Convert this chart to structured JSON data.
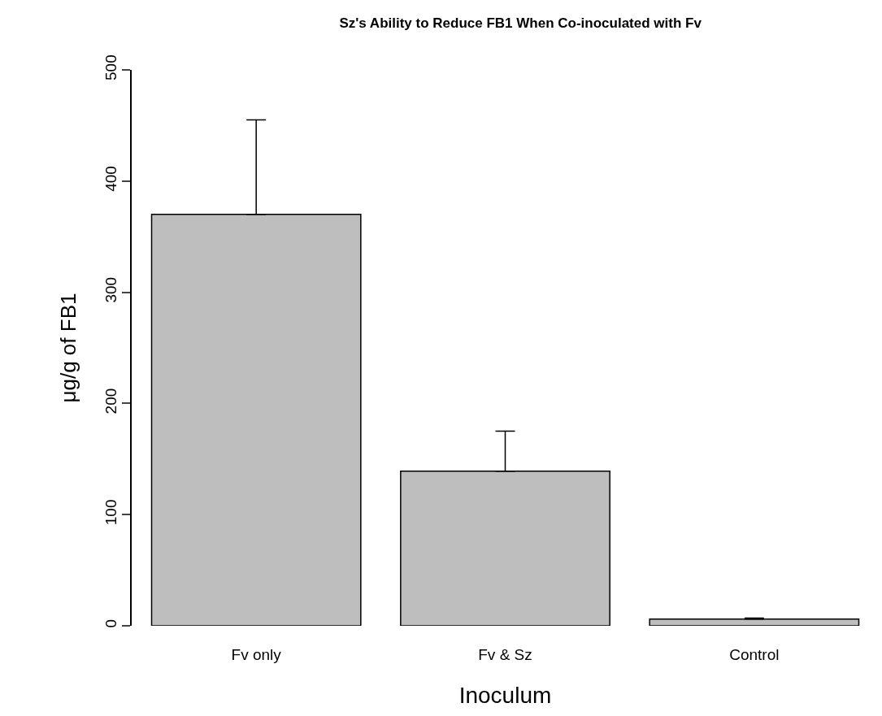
{
  "chart_data": {
    "type": "bar",
    "title": "Sz's Ability to Reduce FB1 When Co-inoculated with Fv",
    "xlabel": "Inoculum",
    "ylabel": "μg/g of FB1",
    "categories": [
      "Fv only",
      "Fv & Sz",
      "Control"
    ],
    "values": [
      370,
      139,
      6
    ],
    "errors": [
      [
        370,
        455
      ],
      [
        139,
        175
      ],
      [
        6,
        7
      ]
    ],
    "color": "#bebebe",
    "ylim": [
      0,
      500
    ],
    "yticks": [
      0,
      100,
      200,
      300,
      400,
      500
    ]
  }
}
